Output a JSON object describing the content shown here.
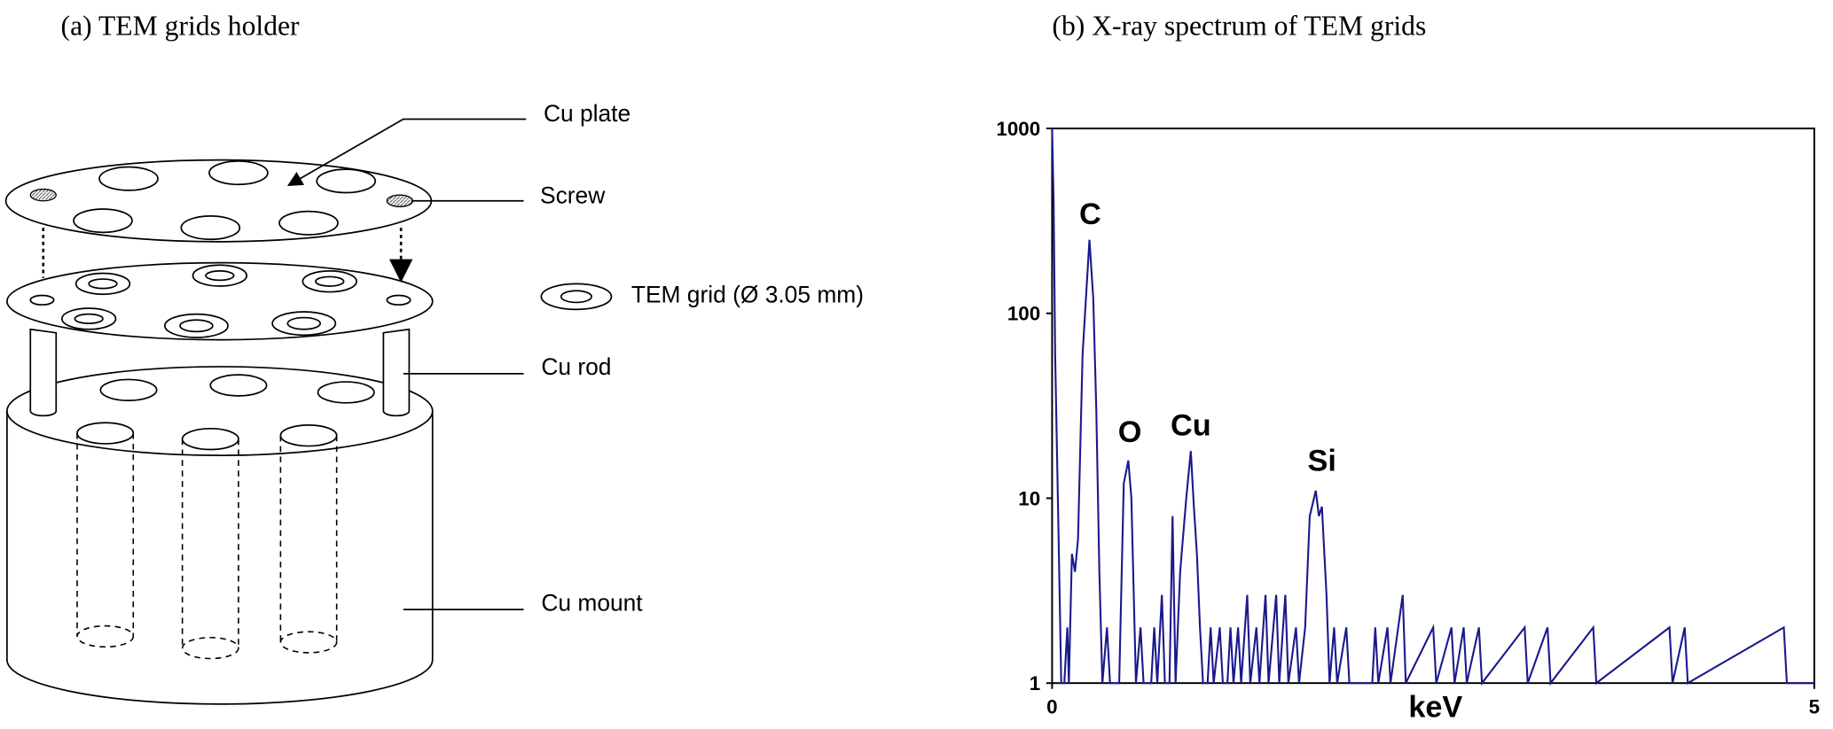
{
  "panel_a": {
    "title": "(a)  TEM grids holder",
    "labels": [
      "Cu plate",
      "Screw",
      "TEM grid (Ø 3.05 mm)",
      "Cu rod",
      "Cu mount"
    ]
  },
  "chart_data": {
    "type": "line",
    "title": "(b) X-ray spectrum of TEM grids",
    "xlabel": "keV",
    "log_y": true,
    "color": "#1a1a8c",
    "xlim": [
      0,
      5
    ],
    "xticks": [
      0,
      5
    ],
    "ylim": [
      1,
      1000
    ],
    "yticks": [
      1,
      10,
      100,
      1000
    ],
    "x": [
      0,
      0.01,
      0.02,
      0.04,
      0.06,
      0.08,
      0.1,
      0.11,
      0.13,
      0.15,
      0.17,
      0.2,
      0.245,
      0.27,
      0.29,
      0.31,
      0.33,
      0.36,
      0.38,
      0.44,
      0.47,
      0.5,
      0.52,
      0.55,
      0.58,
      0.6,
      0.65,
      0.67,
      0.69,
      0.72,
      0.74,
      0.77,
      0.79,
      0.81,
      0.84,
      0.88,
      0.91,
      0.93,
      0.95,
      0.97,
      0.99,
      1.02,
      1.04,
      1.06,
      1.1,
      1.12,
      1.15,
      1.17,
      1.19,
      1.22,
      1.24,
      1.28,
      1.3,
      1.34,
      1.36,
      1.4,
      1.42,
      1.47,
      1.49,
      1.53,
      1.55,
      1.6,
      1.62,
      1.66,
      1.69,
      1.73,
      1.75,
      1.77,
      1.8,
      1.82,
      1.85,
      1.87,
      1.93,
      1.95,
      2.1,
      2.12,
      2.14,
      2.2,
      2.22,
      2.3,
      2.32,
      2.5,
      2.52,
      2.62,
      2.64,
      2.7,
      2.72,
      2.8,
      2.82,
      3.1,
      3.12,
      3.25,
      3.27,
      3.55,
      3.57,
      4.05,
      4.07,
      4.15,
      4.17,
      4.8,
      4.82,
      5
    ],
    "values": [
      1000,
      400,
      60,
      8,
      1,
      1,
      2,
      1,
      5,
      4,
      6,
      60,
      250,
      120,
      30,
      4,
      1,
      2,
      1,
      1,
      12,
      16,
      10,
      1,
      2,
      1,
      1,
      2,
      1,
      3,
      1,
      1,
      8,
      1,
      4,
      10,
      18,
      9,
      5,
      2,
      1,
      1,
      2,
      1,
      2,
      1,
      1,
      2,
      1,
      2,
      1,
      3,
      1,
      2,
      1,
      3,
      1,
      3,
      1,
      3,
      1,
      2,
      1,
      2,
      8,
      11,
      8,
      9,
      3,
      1,
      2,
      1,
      2,
      1,
      1,
      2,
      1,
      2,
      1,
      3,
      1,
      2,
      1,
      2,
      1,
      2,
      1,
      2,
      1,
      2,
      1,
      2,
      1,
      2,
      1,
      2,
      1,
      2,
      1,
      2,
      1,
      1
    ],
    "annotations": [
      {
        "text": "C",
        "x": 0.25,
        "y": 347
      },
      {
        "text": "O",
        "x": 0.51,
        "y": 23
      },
      {
        "text": "Cu",
        "x": 0.91,
        "y": 25
      },
      {
        "text": "Si",
        "x": 1.77,
        "y": 16
      }
    ]
  }
}
